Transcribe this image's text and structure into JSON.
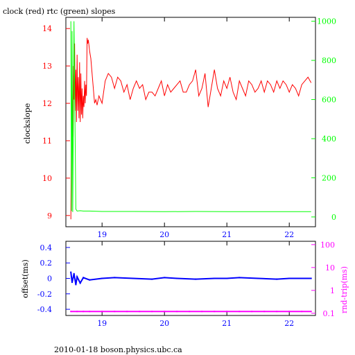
{
  "chart_data": [
    {
      "type": "line",
      "title": "clock (red) rtc (green) slopes",
      "xlabel": "",
      "ylabel": "clockslope",
      "y2label": "",
      "xlim": [
        18.42,
        22.42
      ],
      "ylim": [
        8.7,
        14.3
      ],
      "y2lim": [
        -50,
        1020
      ],
      "x_ticks": [
        "19",
        "20",
        "21",
        "22"
      ],
      "y_ticks": [
        "9",
        "10",
        "11",
        "12",
        "13",
        "14"
      ],
      "y2_ticks": [
        "0",
        "200",
        "400",
        "600",
        "800",
        "1000"
      ],
      "colors": {
        "clock": "#ff0000",
        "rtc": "#00ff00"
      },
      "series": [
        {
          "name": "clock",
          "axis": "left",
          "color": "#ff0000",
          "x": [
            18.5,
            18.51,
            18.52,
            18.53,
            18.54,
            18.55,
            18.56,
            18.57,
            18.58,
            18.59,
            18.6,
            18.61,
            18.62,
            18.63,
            18.64,
            18.65,
            18.66,
            18.67,
            18.68,
            18.69,
            18.7,
            18.71,
            18.72,
            18.73,
            18.74,
            18.75,
            18.76,
            18.77,
            18.78,
            18.8,
            18.82,
            18.84,
            18.86,
            18.88,
            18.9,
            18.92,
            18.95,
            19.0,
            19.05,
            19.1,
            19.15,
            19.2,
            19.25,
            19.3,
            19.35,
            19.4,
            19.45,
            19.5,
            19.55,
            19.6,
            19.65,
            19.7,
            19.75,
            19.8,
            19.85,
            19.9,
            19.95,
            20.0,
            20.05,
            20.1,
            20.15,
            20.2,
            20.25,
            20.3,
            20.35,
            20.4,
            20.45,
            20.5,
            20.55,
            20.6,
            20.65,
            20.7,
            20.75,
            20.8,
            20.85,
            20.9,
            20.95,
            21.0,
            21.05,
            21.1,
            21.15,
            21.2,
            21.25,
            21.3,
            21.35,
            21.4,
            21.45,
            21.5,
            21.55,
            21.6,
            21.65,
            21.7,
            21.75,
            21.8,
            21.85,
            21.9,
            21.95,
            22.0,
            22.05,
            22.1,
            22.15,
            22.2,
            22.25,
            22.3,
            22.35
          ],
          "y": [
            8.9,
            11.5,
            12.3,
            11.1,
            13.0,
            12.1,
            13.6,
            11.8,
            12.9,
            11.5,
            13.3,
            11.8,
            12.7,
            11.6,
            13.1,
            11.5,
            12.8,
            11.7,
            12.4,
            11.6,
            12.2,
            11.9,
            12.6,
            12.0,
            12.5,
            12.2,
            13.75,
            13.6,
            13.7,
            13.4,
            13.2,
            12.8,
            12.4,
            12.0,
            12.1,
            11.95,
            12.2,
            12.0,
            12.6,
            12.8,
            12.7,
            12.4,
            12.7,
            12.6,
            12.3,
            12.5,
            12.1,
            12.4,
            12.6,
            12.4,
            12.5,
            12.1,
            12.3,
            12.3,
            12.2,
            12.4,
            12.6,
            12.2,
            12.5,
            12.3,
            12.4,
            12.5,
            12.6,
            12.3,
            12.3,
            12.5,
            12.6,
            12.9,
            12.2,
            12.4,
            12.8,
            11.9,
            12.4,
            12.9,
            12.4,
            12.2,
            12.6,
            12.4,
            12.7,
            12.3,
            12.1,
            12.6,
            12.4,
            12.2,
            12.6,
            12.5,
            12.3,
            12.4,
            12.6,
            12.3,
            12.6,
            12.5,
            12.3,
            12.6,
            12.4,
            12.6,
            12.5,
            12.3,
            12.5,
            12.4,
            12.2,
            12.5,
            12.6,
            12.7,
            12.55
          ]
        },
        {
          "name": "rtc",
          "axis": "right",
          "color": "#00ff00",
          "x": [
            18.5,
            18.51,
            18.52,
            18.53,
            18.55,
            18.58,
            18.6,
            18.65,
            18.7,
            18.8,
            19.0,
            19.5,
            20.0,
            20.5,
            21.0,
            21.5,
            22.0,
            22.35
          ],
          "y": [
            1000,
            30,
            950,
            25,
            1000,
            40,
            30,
            32,
            30,
            30,
            28,
            28,
            27,
            28,
            27,
            27,
            27,
            27
          ]
        }
      ]
    },
    {
      "type": "scatter",
      "title": "",
      "xlabel": "",
      "ylabel": "offset(ms)",
      "y2label": "rnd-trip(ms)",
      "xlim": [
        18.42,
        22.42
      ],
      "ylim": [
        -0.48,
        0.48
      ],
      "y2scale": "log",
      "y2lim": [
        0.08,
        140
      ],
      "x_ticks": [
        "19",
        "20",
        "21",
        "22"
      ],
      "y_ticks": [
        "-0.4",
        "-0.2",
        "0",
        "0.2",
        "0.4"
      ],
      "y2_ticks": [
        "0.1",
        "1",
        "10",
        "100"
      ],
      "colors": {
        "offset": "#0000ff",
        "rndtrip": "#ff00ff"
      },
      "series": [
        {
          "name": "offset",
          "axis": "left",
          "color": "#0000ff",
          "x": [
            18.5,
            18.52,
            18.55,
            18.58,
            18.6,
            18.65,
            18.7,
            18.8,
            19.0,
            19.2,
            19.5,
            19.8,
            20.0,
            20.2,
            20.5,
            20.8,
            21.0,
            21.2,
            21.5,
            21.8,
            22.0,
            22.2,
            22.35
          ],
          "y": [
            0.08,
            -0.05,
            0.06,
            -0.08,
            0.02,
            -0.06,
            0.01,
            -0.02,
            0.0,
            0.01,
            0.0,
            -0.01,
            0.01,
            0.0,
            -0.01,
            0.0,
            0.0,
            0.01,
            0.0,
            -0.01,
            0.0,
            0.0,
            0.0
          ]
        },
        {
          "name": "rnd-trip",
          "axis": "right",
          "color": "#ff00ff",
          "x": [
            18.5,
            18.6,
            18.7,
            18.8,
            19.0,
            19.2,
            19.4,
            19.6,
            19.8,
            20.0,
            20.2,
            20.4,
            20.6,
            20.8,
            21.0,
            21.2,
            21.4,
            21.6,
            21.8,
            22.0,
            22.2,
            22.35
          ],
          "y": [
            0.12,
            0.12,
            0.12,
            0.12,
            0.12,
            0.12,
            0.12,
            0.12,
            0.12,
            0.12,
            0.12,
            0.12,
            0.12,
            0.12,
            0.12,
            0.12,
            0.12,
            0.12,
            0.12,
            0.12,
            0.12,
            0.12
          ]
        }
      ]
    }
  ],
  "footer": "2010-01-18 boson.physics.ubc.ca"
}
